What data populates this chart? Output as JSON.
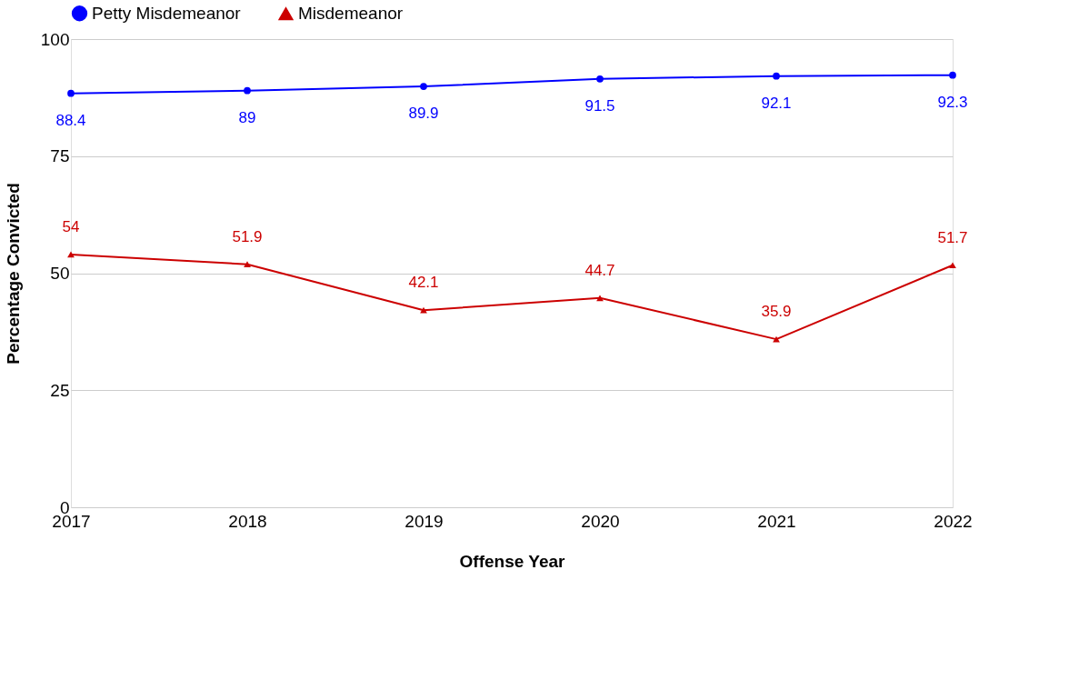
{
  "chart_data": {
    "type": "line",
    "xlabel": "Offense Year",
    "ylabel": "Percentage Convicted",
    "categories": [
      "2017",
      "2018",
      "2019",
      "2020",
      "2021",
      "2022"
    ],
    "series": [
      {
        "name": "Petty Misdemeanor",
        "color": "#0000ff",
        "marker": "circle",
        "values": [
          88.4,
          89,
          89.9,
          91.5,
          92.1,
          92.3
        ]
      },
      {
        "name": "Misdemeanor",
        "color": "#cc0000",
        "marker": "triangle",
        "values": [
          54,
          51.9,
          42.1,
          44.7,
          35.9,
          51.7
        ]
      }
    ],
    "ylim": [
      0,
      100
    ],
    "yticks": [
      0,
      25,
      50,
      75,
      100
    ],
    "grid": "y",
    "legend": "top",
    "data_labels": true,
    "line_style": "solid"
  }
}
